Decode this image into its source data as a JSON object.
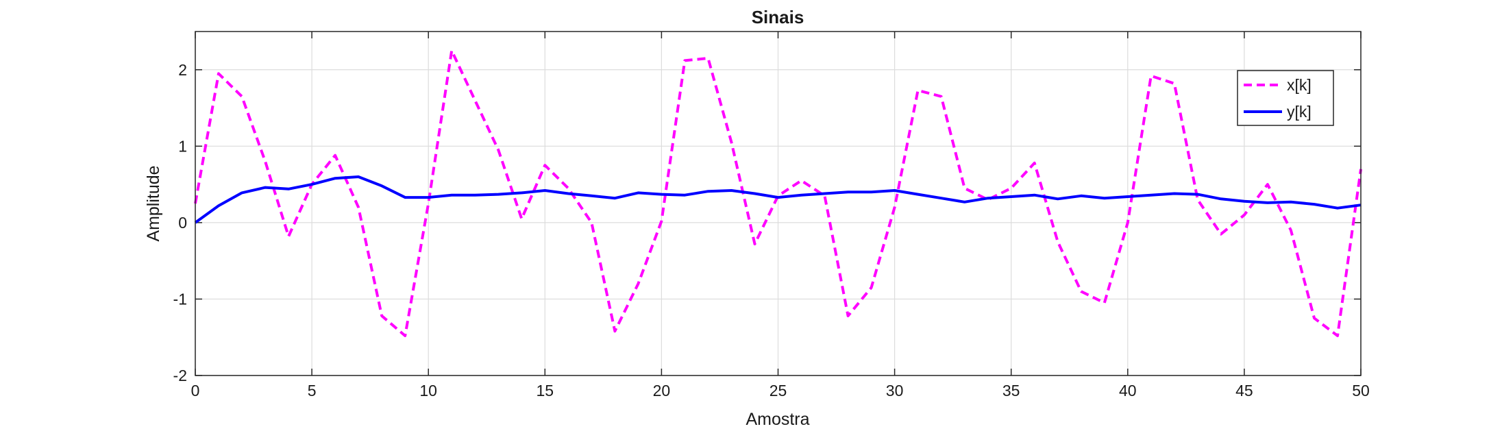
{
  "chart_data": {
    "type": "line",
    "title": "Sinais",
    "xlabel": "Amostra",
    "ylabel": "Amplitude",
    "xlim": [
      0,
      50
    ],
    "ylim": [
      -2,
      2.5
    ],
    "xticks": [
      0,
      5,
      10,
      15,
      20,
      25,
      30,
      35,
      40,
      45,
      50
    ],
    "yticks": [
      -2,
      -1,
      0,
      1,
      2
    ],
    "grid": true,
    "legend_position": "top-right",
    "series": [
      {
        "name": "x[k]",
        "color": "#ff00ff",
        "style": "dashed",
        "x": [
          0,
          1,
          2,
          3,
          4,
          5,
          6,
          7,
          8,
          9,
          10,
          11,
          12,
          13,
          14,
          15,
          16,
          17,
          18,
          19,
          20,
          21,
          22,
          23,
          24,
          25,
          26,
          27,
          28,
          29,
          30,
          31,
          32,
          33,
          34,
          35,
          36,
          37,
          38,
          39,
          40,
          41,
          42,
          43,
          44,
          45,
          46,
          47,
          48,
          49,
          50
        ],
        "values": [
          0.25,
          1.95,
          1.65,
          0.8,
          -0.18,
          0.5,
          0.88,
          0.2,
          -1.22,
          -1.48,
          0.25,
          2.25,
          1.6,
          0.95,
          0.05,
          0.75,
          0.45,
          0.0,
          -1.42,
          -0.8,
          0.02,
          2.12,
          2.15,
          1.05,
          -0.28,
          0.35,
          0.55,
          0.35,
          -1.22,
          -0.85,
          0.2,
          1.73,
          1.65,
          0.45,
          0.3,
          0.45,
          0.78,
          -0.25,
          -0.9,
          -1.05,
          0.0,
          1.92,
          1.82,
          0.3,
          -0.15,
          0.1,
          0.5,
          -0.1,
          -1.25,
          -1.48,
          0.7
        ]
      },
      {
        "name": "y[k]",
        "color": "#0000ff",
        "style": "solid",
        "x": [
          0,
          1,
          2,
          3,
          4,
          5,
          6,
          7,
          8,
          9,
          10,
          11,
          12,
          13,
          14,
          15,
          16,
          17,
          18,
          19,
          20,
          21,
          22,
          23,
          24,
          25,
          26,
          27,
          28,
          29,
          30,
          31,
          32,
          33,
          34,
          35,
          36,
          37,
          38,
          39,
          40,
          41,
          42,
          43,
          44,
          45,
          46,
          47,
          48,
          49,
          50
        ],
        "values": [
          0.0,
          0.22,
          0.39,
          0.46,
          0.44,
          0.5,
          0.58,
          0.6,
          0.48,
          0.33,
          0.33,
          0.36,
          0.36,
          0.37,
          0.39,
          0.42,
          0.38,
          0.35,
          0.32,
          0.39,
          0.37,
          0.36,
          0.41,
          0.42,
          0.38,
          0.33,
          0.36,
          0.38,
          0.4,
          0.4,
          0.42,
          0.37,
          0.32,
          0.27,
          0.32,
          0.34,
          0.36,
          0.31,
          0.35,
          0.32,
          0.34,
          0.36,
          0.38,
          0.37,
          0.31,
          0.28,
          0.26,
          0.27,
          0.24,
          0.19,
          0.23
        ]
      }
    ]
  }
}
